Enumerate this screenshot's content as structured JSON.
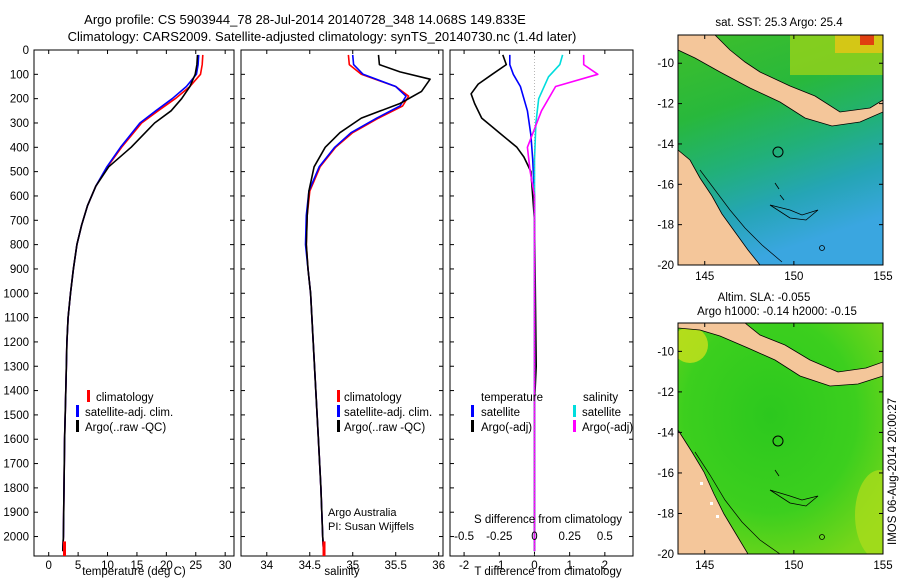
{
  "title": {
    "line1": "Argo profile: CS 5903944_78 28-Jul-2014 20140728_348 14.068S 149.833E",
    "line2": "Climatology: CARS2009. Satellite-adjusted climatology: synTS_20140730.nc (1.4d later)"
  },
  "colors": {
    "climatology": "#ff0000",
    "satellite": "#0000ff",
    "argo": "#000000",
    "satellite_s": "#00dddd",
    "argo_s": "#ff00ff",
    "land": "#f4c69a"
  },
  "depth_axis": {
    "range": [
      0,
      2080
    ],
    "ticks": [
      0,
      100,
      200,
      300,
      400,
      500,
      600,
      700,
      800,
      900,
      1000,
      1100,
      1200,
      1300,
      1400,
      1500,
      1600,
      1700,
      1800,
      1900,
      2000
    ],
    "tick_labels": [
      "0",
      "100",
      "200",
      "300",
      "400",
      "500",
      "600",
      "700",
      "800",
      "900",
      "1000",
      "1100",
      "1200",
      "1300",
      "1400",
      "1500",
      "1600",
      "1700",
      "1800",
      "1900",
      "2000"
    ]
  },
  "chart_data": [
    {
      "type": "line",
      "name": "temperature",
      "xlabel": "temperature (deg C)",
      "xlim": [
        -2.5,
        31.5
      ],
      "xticks": [
        0,
        5,
        10,
        15,
        20,
        25,
        30
      ],
      "xtick_labels": [
        "0",
        "5",
        "10",
        "15",
        "20",
        "25",
        "30"
      ],
      "ylim": [
        0,
        2080
      ],
      "legend": {
        "position": "bottom-center",
        "items": [
          "climatology",
          "satellite-adj. clim.",
          "Argo(..raw -QC)"
        ]
      },
      "series": [
        {
          "name": "climatology",
          "color_key": "climatology",
          "x": [
            26.2,
            26.1,
            25.8,
            24.0,
            21.5,
            18.6,
            15.8,
            12.4,
            10.0,
            8.0,
            6.6,
            5.6,
            4.8,
            4.2,
            3.7,
            3.3,
            3.1,
            2.9,
            2.7,
            2.6,
            2.5,
            2.4
          ],
          "y": [
            20,
            60,
            100,
            150,
            200,
            250,
            300,
            400,
            480,
            560,
            640,
            720,
            800,
            900,
            1000,
            1100,
            1200,
            1400,
            1600,
            1800,
            2000,
            2060
          ]
        },
        {
          "name": "satellite-adj. clim.",
          "color_key": "satellite",
          "x": [
            25.5,
            25.4,
            25.1,
            23.4,
            21.0,
            18.2,
            15.5,
            12.2,
            9.9,
            8.0,
            6.6,
            5.6,
            4.8,
            4.2,
            3.7,
            3.3,
            3.1,
            2.9,
            2.7,
            2.6,
            2.5,
            2.4
          ],
          "y": [
            20,
            60,
            100,
            150,
            200,
            250,
            300,
            400,
            480,
            560,
            640,
            720,
            800,
            900,
            1000,
            1100,
            1200,
            1400,
            1600,
            1800,
            2000,
            2060
          ]
        },
        {
          "name": "Argo(..raw -QC)",
          "color_key": "argo",
          "x": [
            25.3,
            25.2,
            24.9,
            24.0,
            22.6,
            20.8,
            18.0,
            14.0,
            10.2,
            8.0,
            6.6,
            5.6,
            4.8,
            4.2,
            3.7,
            3.3,
            3.1,
            2.9,
            2.7,
            2.6,
            2.5,
            2.4
          ],
          "y": [
            20,
            60,
            100,
            150,
            200,
            250,
            300,
            400,
            480,
            560,
            640,
            720,
            800,
            900,
            1000,
            1100,
            1200,
            1400,
            1600,
            1800,
            2000,
            2060
          ]
        }
      ]
    },
    {
      "type": "line",
      "name": "salinity",
      "xlabel": "salinity",
      "xlim": [
        33.7,
        36.05
      ],
      "xticks": [
        34,
        34.5,
        35,
        35.5,
        36
      ],
      "xtick_labels": [
        "34",
        "34.5",
        "35",
        "35.5",
        "36"
      ],
      "ylim": [
        0,
        2080
      ],
      "legend": {
        "position": "bottom-center",
        "items": [
          "climatology",
          "satellite-adj. clim.",
          "Argo(..raw -QC)"
        ]
      },
      "annotation": [
        "Argo Australia",
        "PI: Susan Wijffels"
      ],
      "series": [
        {
          "name": "climatology",
          "color_key": "climatology",
          "x": [
            34.95,
            34.96,
            35.1,
            35.5,
            35.65,
            35.58,
            35.3,
            35.0,
            34.8,
            34.62,
            34.5,
            34.47,
            34.46,
            34.48,
            34.51,
            34.54,
            34.57,
            34.6,
            34.63,
            34.65,
            34.66
          ],
          "y": [
            20,
            60,
            100,
            150,
            190,
            230,
            280,
            340,
            400,
            480,
            580,
            680,
            800,
            900,
            1000,
            1200,
            1400,
            1600,
            1800,
            2000,
            2060
          ]
        },
        {
          "name": "satellite-adj. clim.",
          "color_key": "satellite",
          "x": [
            35.0,
            35.01,
            35.12,
            35.5,
            35.62,
            35.55,
            35.28,
            34.98,
            34.79,
            34.61,
            34.49,
            34.46,
            34.45,
            34.48,
            34.51,
            34.54,
            34.57,
            34.6,
            34.63,
            34.65,
            34.66
          ],
          "y": [
            20,
            60,
            100,
            150,
            190,
            230,
            280,
            340,
            400,
            480,
            580,
            680,
            800,
            900,
            1000,
            1200,
            1400,
            1600,
            1800,
            2000,
            2060
          ]
        },
        {
          "name": "Argo(..raw -QC)",
          "color_key": "argo",
          "x": [
            35.3,
            35.31,
            35.55,
            35.9,
            35.8,
            35.55,
            35.1,
            34.85,
            34.68,
            34.55,
            34.49,
            34.47,
            34.46,
            34.48,
            34.51,
            34.54,
            34.57,
            34.6,
            34.63,
            34.65,
            34.66
          ],
          "y": [
            20,
            60,
            90,
            120,
            170,
            220,
            280,
            340,
            400,
            480,
            580,
            680,
            800,
            900,
            1000,
            1200,
            1400,
            1600,
            1800,
            2000,
            2060
          ]
        }
      ]
    },
    {
      "type": "line",
      "name": "difference from climatology",
      "xlabel": "T difference from climatology",
      "xlabel_top": "S difference from climatology",
      "xlim_T": [
        -2.4,
        2.8
      ],
      "xticks_T": [
        -2,
        -1,
        0,
        1,
        2
      ],
      "xtick_labels_T": [
        "-2",
        "-1",
        "0",
        "1",
        "2"
      ],
      "xlim_S": [
        -0.6,
        0.7
      ],
      "xticks_S": [
        -0.5,
        -0.25,
        0,
        0.25,
        0.5
      ],
      "xtick_labels_S": [
        "-0.5",
        "-0.25",
        "0",
        "0.25",
        "0.5"
      ],
      "ylim": [
        0,
        2080
      ],
      "legend": {
        "position": "bottom",
        "headers": [
          "temperature",
          "salinity"
        ],
        "items": [
          "satellite",
          "Argo(-adj)",
          "satellite",
          "Argo(-adj)"
        ]
      },
      "series": [
        {
          "name": "temperature satellite",
          "color_key": "satellite",
          "axis": "T",
          "x": [
            -0.7,
            -0.7,
            -0.6,
            -0.4,
            -0.2,
            -0.1,
            -0.05,
            0.0,
            0.0,
            0.0
          ],
          "y": [
            20,
            60,
            100,
            150,
            250,
            350,
            450,
            600,
            1000,
            2060
          ]
        },
        {
          "name": "temperature Argo(-adj)",
          "color_key": "argo",
          "axis": "T",
          "x": [
            -0.9,
            -0.8,
            -1.2,
            -1.6,
            -1.8,
            -1.7,
            -1.5,
            -1.0,
            -0.5,
            -0.3,
            -0.1,
            0.0,
            0.05,
            0.0,
            0.0,
            0.0
          ],
          "y": [
            20,
            60,
            100,
            140,
            180,
            220,
            280,
            340,
            400,
            440,
            500,
            700,
            1300,
            1450,
            1800,
            2060
          ]
        },
        {
          "name": "salinity satellite",
          "color_key": "satellite_s",
          "axis": "S",
          "x": [
            0.2,
            0.18,
            0.1,
            0.03,
            0.01,
            0.0,
            0.0,
            0.0
          ],
          "y": [
            20,
            60,
            110,
            200,
            300,
            450,
            600,
            2060
          ]
        },
        {
          "name": "salinity Argo(-adj)",
          "color_key": "argo_s",
          "axis": "S",
          "x": [
            0.35,
            0.35,
            0.45,
            0.15,
            0.05,
            -0.05,
            -0.03,
            0.0,
            0.0
          ],
          "y": [
            20,
            60,
            100,
            150,
            250,
            400,
            500,
            600,
            2060
          ]
        }
      ]
    },
    {
      "type": "heatmap",
      "name": "sea surface temperature map",
      "title": "sat. SST: 25.3 Argo: 25.4",
      "xticks": [
        145,
        150,
        155
      ],
      "xtick_labels": [
        "145",
        "150",
        "155"
      ],
      "xlim": [
        143.5,
        155
      ],
      "yticks": [
        -10,
        -12,
        -14,
        -16,
        -18,
        -20
      ],
      "ytick_labels": [
        "-10",
        "-12",
        "-14",
        "-16",
        "-18",
        "-20"
      ],
      "ylim": [
        -20,
        -8.6
      ],
      "marker": {
        "lon": 149.833,
        "lat": -14.068
      }
    },
    {
      "type": "heatmap",
      "name": "sea level anomaly map",
      "title_line1": "Altim. SLA: -0.055",
      "title_line2": "Argo h1000: -0.14 h2000: -0.15",
      "xticks": [
        145,
        150,
        155
      ],
      "xtick_labels": [
        "145",
        "150",
        "155"
      ],
      "xlim": [
        143.5,
        155
      ],
      "yticks": [
        -10,
        -12,
        -14,
        -16,
        -18,
        -20
      ],
      "ytick_labels": [
        "-10",
        "-12",
        "-14",
        "-16",
        "-18",
        "-20"
      ],
      "ylim": [
        -20,
        -8.6
      ],
      "marker": {
        "lon": 149.833,
        "lat": -14.068
      }
    }
  ],
  "watermark": "IMOS 06-Aug-2014 20:00:27"
}
